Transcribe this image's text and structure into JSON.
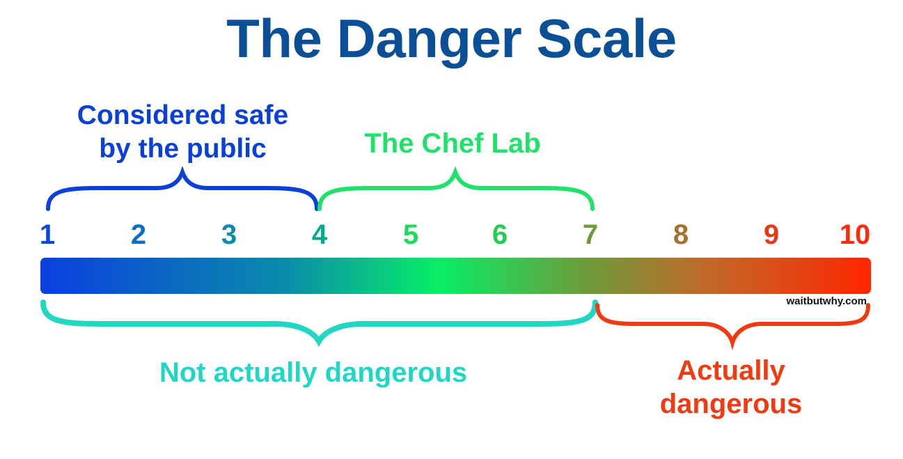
{
  "title": "The Danger Scale",
  "brace_labels": {
    "safe_line1": "Considered safe",
    "safe_line2": "by the public",
    "chef_lab": "The Chef Lab",
    "not_dangerous": "Not actually dangerous",
    "actually_line1": "Actually",
    "actually_line2": "dangerous"
  },
  "scale": {
    "numbers": [
      "1",
      "2",
      "3",
      "4",
      "5",
      "6",
      "7",
      "8",
      "9",
      "10"
    ],
    "number_colors": [
      "#0a48d6",
      "#0a6fc7",
      "#0a8ea8",
      "#0aa890",
      "#1adc5a",
      "#24cc52",
      "#6f9a3a",
      "#a8702e",
      "#e23a1a",
      "#ff2a0a"
    ]
  },
  "watermark": "waitbutwhy.com",
  "colors": {
    "title": "#0b4f96",
    "safe": "#0a40d8",
    "chef": "#1fe26a",
    "not_dangerous": "#22d6c4",
    "actually_dangerous": "#f03a12",
    "bar_start": "#0a3fe0",
    "bar_mid": "#08ee66",
    "bar_end": "#ff2600"
  }
}
